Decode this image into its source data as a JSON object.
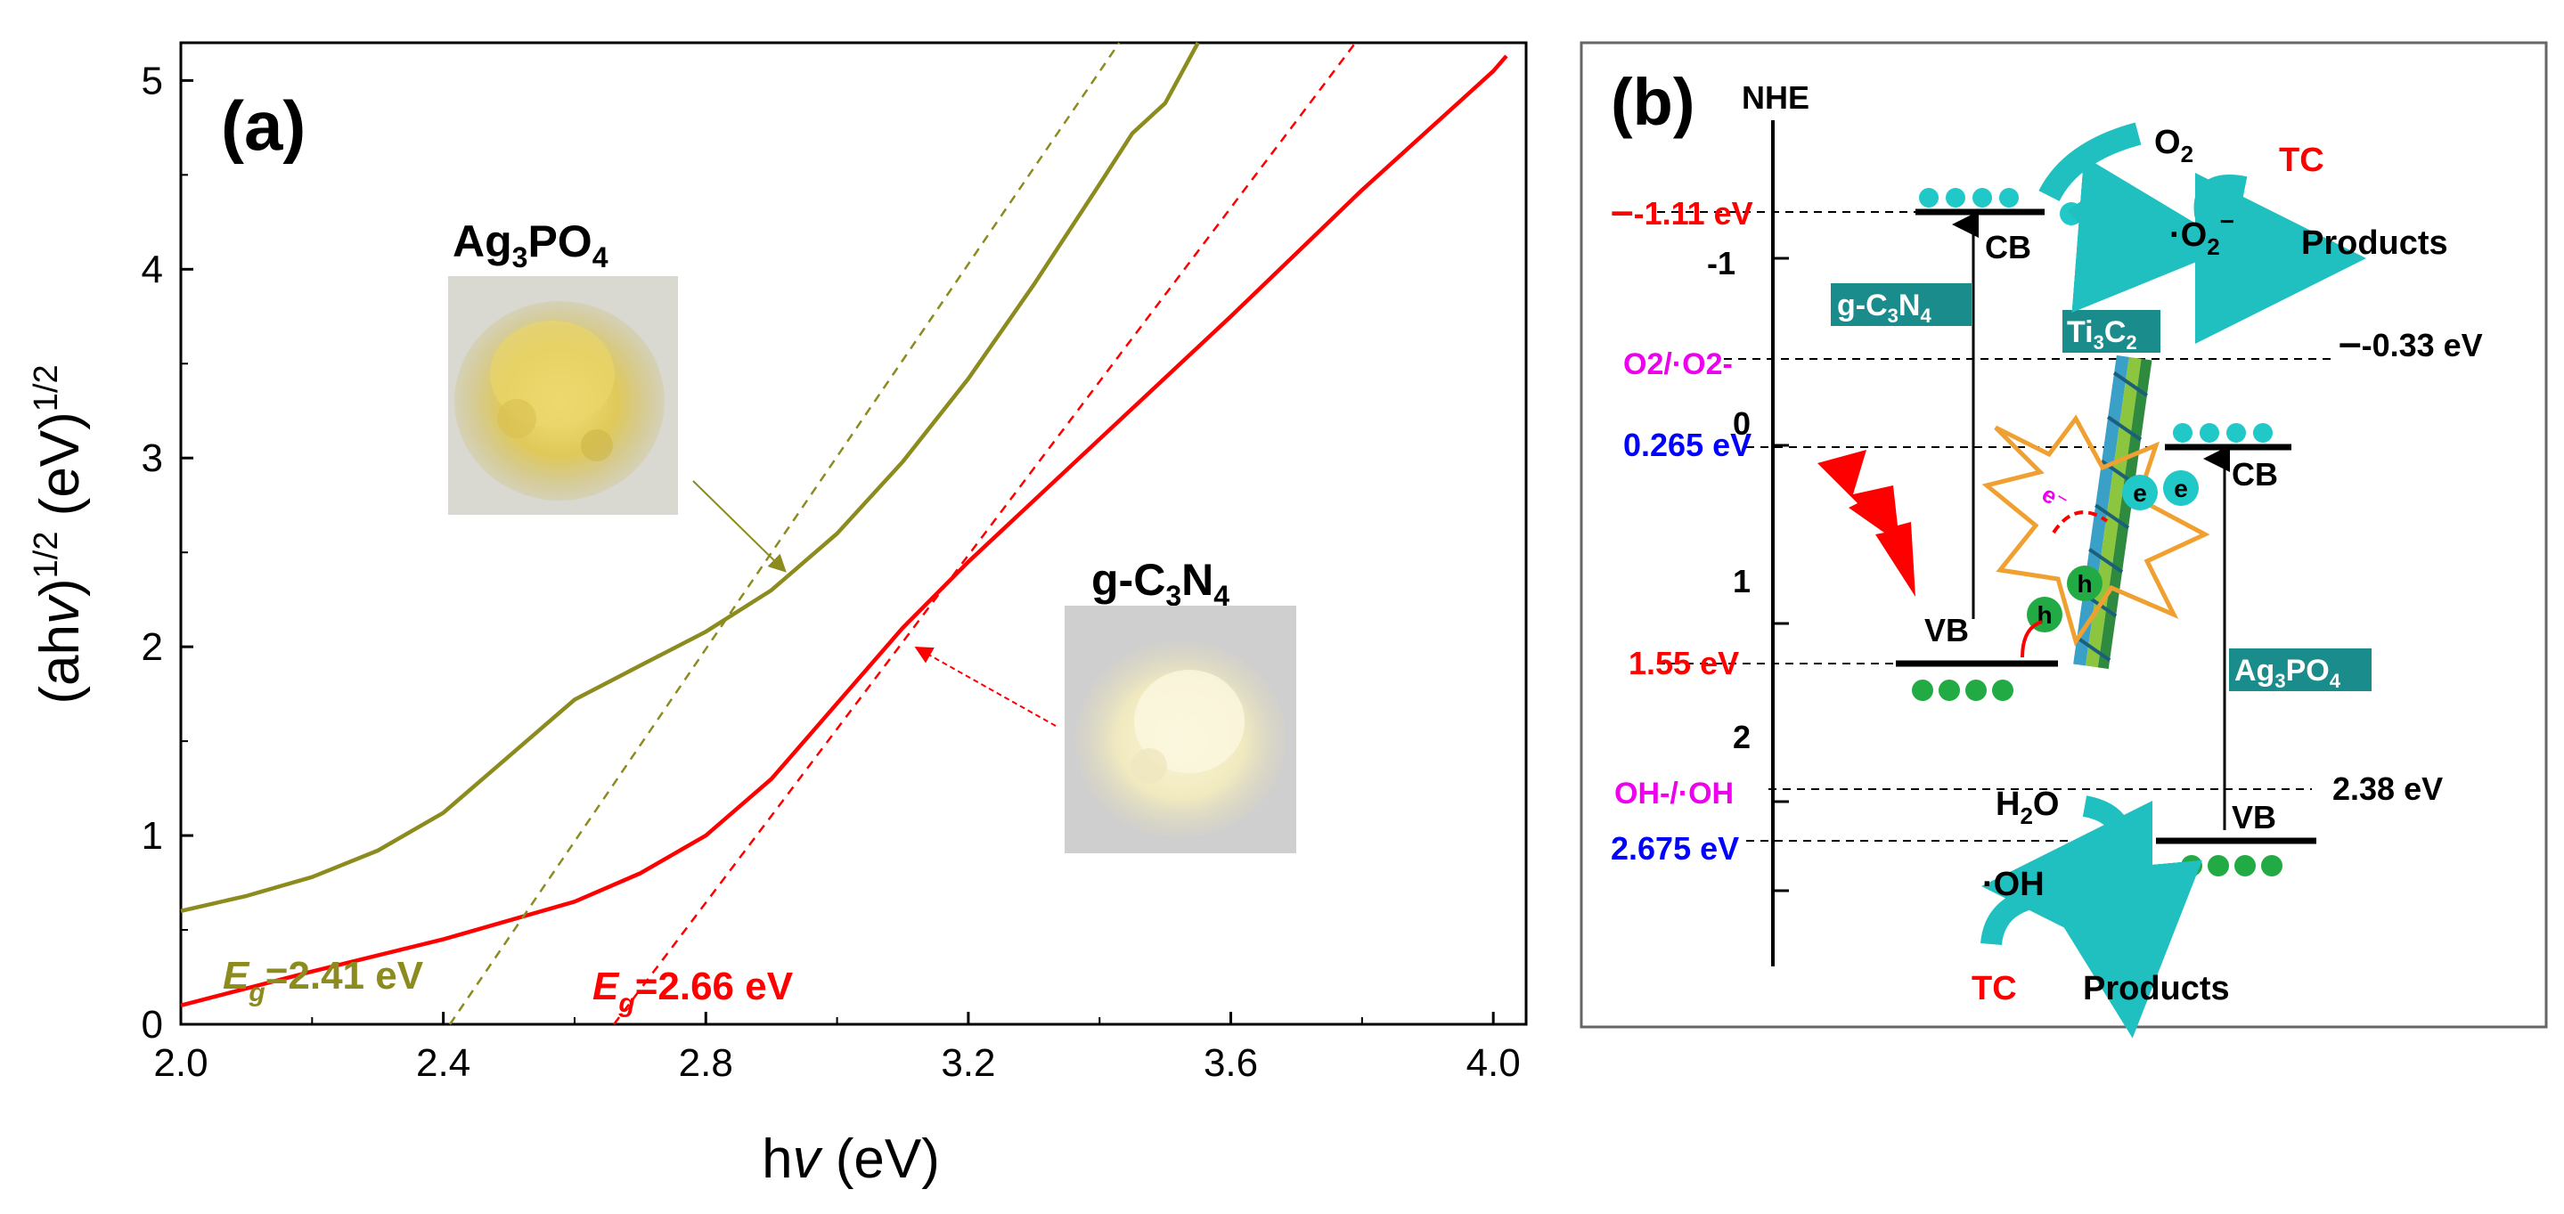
{
  "panel_a": {
    "label": "(a)",
    "xlabel_pre": "h",
    "xlabel_nu": "v",
    "xlabel_post": " (eV)",
    "ylabel": {
      "p1": "(ah",
      "nu": "v",
      "p2": ")",
      "sup1": "1/2",
      "p3": " (eV)",
      "sup2": "1/2"
    },
    "samples": {
      "ag3po4": {
        "name_main": "Ag",
        "s1": "3",
        "name_mid": "PO",
        "s2": "4",
        "photo": "yellow Ag3PO4 powder"
      },
      "gc3n4": {
        "name_main": "g-C",
        "s1": "3",
        "name_mid": "N",
        "s2": "4",
        "photo": "pale yellow g-C3N4 powder"
      }
    },
    "eg_labels": {
      "ag3po4": {
        "E": "E",
        "g": "g",
        "value": "=2.41 eV"
      },
      "gc3n4": {
        "E": "E",
        "g": "g",
        "value": "=2.66 eV"
      }
    }
  },
  "chart_data": {
    "type": "line",
    "title": "(a)",
    "xlabel": "hν (eV)",
    "ylabel": "(ahν)^1/2 (eV)^1/2",
    "xlim": [
      2.0,
      4.05
    ],
    "ylim": [
      0,
      5.2
    ],
    "xticks": [
      "2.0",
      "2.4",
      "2.8",
      "3.2",
      "3.6",
      "4.0"
    ],
    "xtick_values": [
      2.0,
      2.4,
      2.8,
      3.2,
      3.6,
      4.0
    ],
    "yticks": [
      "0",
      "1",
      "2",
      "3",
      "4",
      "5"
    ],
    "ytick_values": [
      0,
      1,
      2,
      3,
      4,
      5
    ],
    "series": [
      {
        "name": "Ag3PO4",
        "color": "#8b8b1e",
        "style": "solid",
        "x": [
          2.0,
          2.1,
          2.2,
          2.3,
          2.4,
          2.5,
          2.6,
          2.7,
          2.8,
          2.9,
          3.0,
          3.1,
          3.2,
          3.3,
          3.4,
          3.45,
          3.5,
          3.55
        ],
        "y": [
          0.6,
          0.68,
          0.78,
          0.92,
          1.12,
          1.42,
          1.72,
          1.9,
          2.08,
          2.3,
          2.6,
          2.98,
          3.42,
          3.92,
          4.45,
          4.72,
          4.88,
          5.2
        ]
      },
      {
        "name": "g-C3N4",
        "color": "#ff0000",
        "style": "solid",
        "x": [
          2.0,
          2.2,
          2.4,
          2.6,
          2.7,
          2.8,
          2.9,
          3.0,
          3.1,
          3.2,
          3.4,
          3.6,
          3.8,
          4.0,
          4.02
        ],
        "y": [
          0.1,
          0.28,
          0.45,
          0.65,
          0.8,
          1.0,
          1.3,
          1.7,
          2.1,
          2.45,
          3.1,
          3.75,
          4.42,
          5.05,
          5.13
        ]
      },
      {
        "name": "Ag3PO4 tangent",
        "color": "#8b8b1e",
        "style": "dashed",
        "x": [
          2.41,
          3.43
        ],
        "y": [
          0.0,
          5.2
        ]
      },
      {
        "name": "g-C3N4 tangent",
        "color": "#ff0000",
        "style": "dashed",
        "x": [
          2.66,
          3.79
        ],
        "y": [
          0.0,
          5.2
        ]
      }
    ],
    "annotations": [
      "Eg=2.41 eV",
      "Eg=2.66 eV"
    ]
  },
  "panel_b": {
    "label": "(b)",
    "nhe": "NHE",
    "potential_ticks": [
      "-1",
      "0",
      "1",
      "2"
    ],
    "levels": {
      "gcn_cb": "-1.11 eV",
      "o2_couple_right": "-0.33 eV",
      "ag_cb": "0.265 eV",
      "gcn_vb": "1.55 eV",
      "oh_couple_right": "2.38 eV",
      "ag_vb": "2.675 eV"
    },
    "couples": {
      "o2": "O2/·O2-",
      "oh": "OH-/·OH"
    },
    "band_labels": {
      "cb1": "CB",
      "vb1": "VB",
      "cb2": "CB",
      "vb2": "VB"
    },
    "materials": {
      "gcn": {
        "a": "g-C",
        "s1": "3",
        "b": "N",
        "s2": "4"
      },
      "ti3c2": {
        "a": "Ti",
        "s1": "3",
        "b": "C",
        "s2": "2"
      },
      "ag": {
        "a": "Ag",
        "s1": "3",
        "b": "PO",
        "s2": "4"
      }
    },
    "species": {
      "o2": "O",
      "o2_sub": "2",
      "superoxide": "·O",
      "superoxide_sub": "2",
      "superoxide_sup": "−",
      "tc_top": "TC",
      "products_top": "Products",
      "h2o": "H",
      "h2o_sub": "2",
      "h2o_end": "O",
      "oh_radical": "·OH",
      "tc_bottom": "TC",
      "products_bottom": "Products"
    },
    "carriers": {
      "e": "e",
      "h": "h",
      "path_text": "e⁻"
    },
    "colors": {
      "red": "#ff0000",
      "blue": "#0000ff",
      "magenta": "#ee00ee",
      "teal": "#1a8c8c",
      "cyan": "#20c8c8",
      "green": "#22aa44"
    }
  }
}
